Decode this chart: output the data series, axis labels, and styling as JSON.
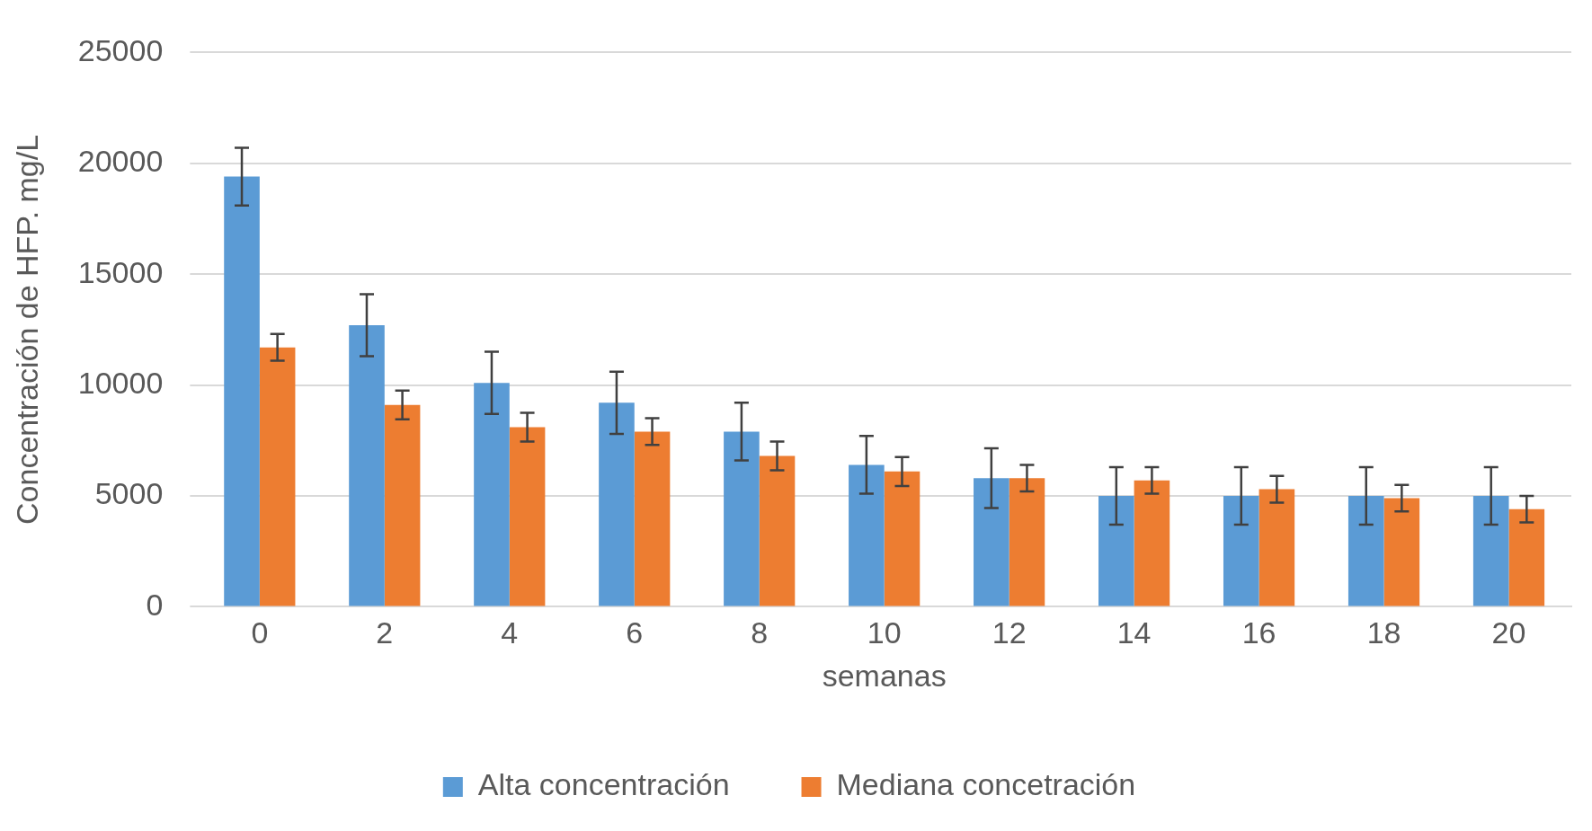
{
  "chart_data": {
    "type": "bar",
    "xlabel": "semanas",
    "ylabel": "Concentración de HFP. mg/L",
    "categories": [
      "0",
      "2",
      "4",
      "6",
      "8",
      "10",
      "12",
      "14",
      "16",
      "18",
      "20"
    ],
    "series": [
      {
        "name": "Alta concentración",
        "color": "#5b9bd5",
        "values": [
          19400,
          12700,
          10100,
          9200,
          7900,
          6400,
          5800,
          5000,
          5000,
          5000,
          5000
        ],
        "errors": [
          1300,
          1400,
          1400,
          1400,
          1300,
          1300,
          1350,
          1300,
          1300,
          1300,
          1300
        ]
      },
      {
        "name": "Mediana concetración",
        "color": "#ed7d31",
        "values": [
          11700,
          9100,
          8100,
          7900,
          6800,
          6100,
          5800,
          5700,
          5300,
          4900,
          4400
        ],
        "errors": [
          600,
          650,
          650,
          600,
          650,
          650,
          600,
          600,
          600,
          600,
          600
        ]
      }
    ],
    "ylim": [
      0,
      25000
    ],
    "yticks": [
      0,
      5000,
      10000,
      15000,
      20000,
      25000
    ],
    "grid": "y",
    "legend": "bottom"
  }
}
